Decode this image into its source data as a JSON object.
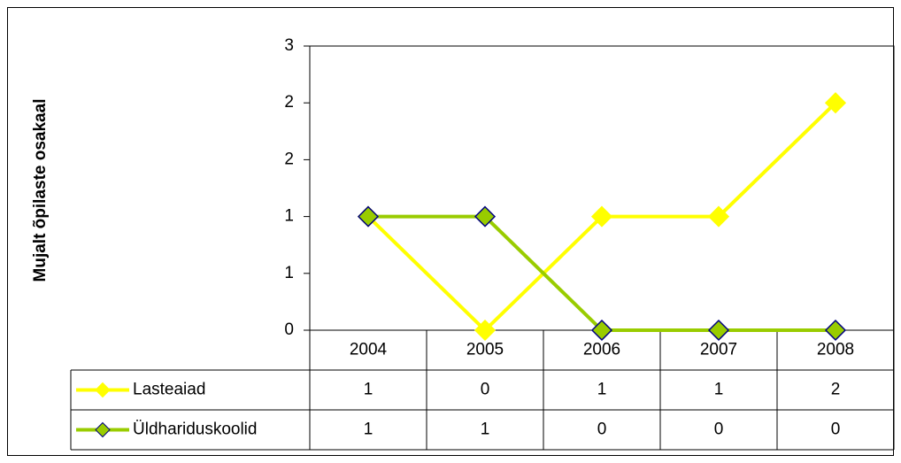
{
  "chart_data": {
    "type": "line",
    "y_label": "Mujalt õpilaste osakaal",
    "categories": [
      "2004",
      "2005",
      "2006",
      "2007",
      "2008"
    ],
    "series": [
      {
        "name": "Lasteaiad",
        "color": "#ffff00",
        "marker_edge": "#ffff00",
        "values": [
          1.2,
          0,
          1.2,
          1.2,
          2.4
        ],
        "value_labels": [
          "1",
          "0",
          "1",
          "1",
          "2"
        ]
      },
      {
        "name": "Üldhariduskoolid",
        "color": "#99cc00",
        "marker_edge": "#000080",
        "values": [
          1.2,
          1.2,
          0,
          0,
          0
        ],
        "value_labels": [
          "1",
          "1",
          "0",
          "0",
          "0"
        ]
      }
    ],
    "ylim": [
      0,
      3
    ],
    "yticks": [
      0,
      {
        "value": 0.6,
        "label": "1"
      },
      {
        "value": 1.2,
        "label": "1"
      },
      {
        "value": 1.8,
        "label": "2"
      },
      {
        "value": 2.4,
        "label": "2"
      },
      3
    ],
    "grid": false,
    "data_table": true
  }
}
